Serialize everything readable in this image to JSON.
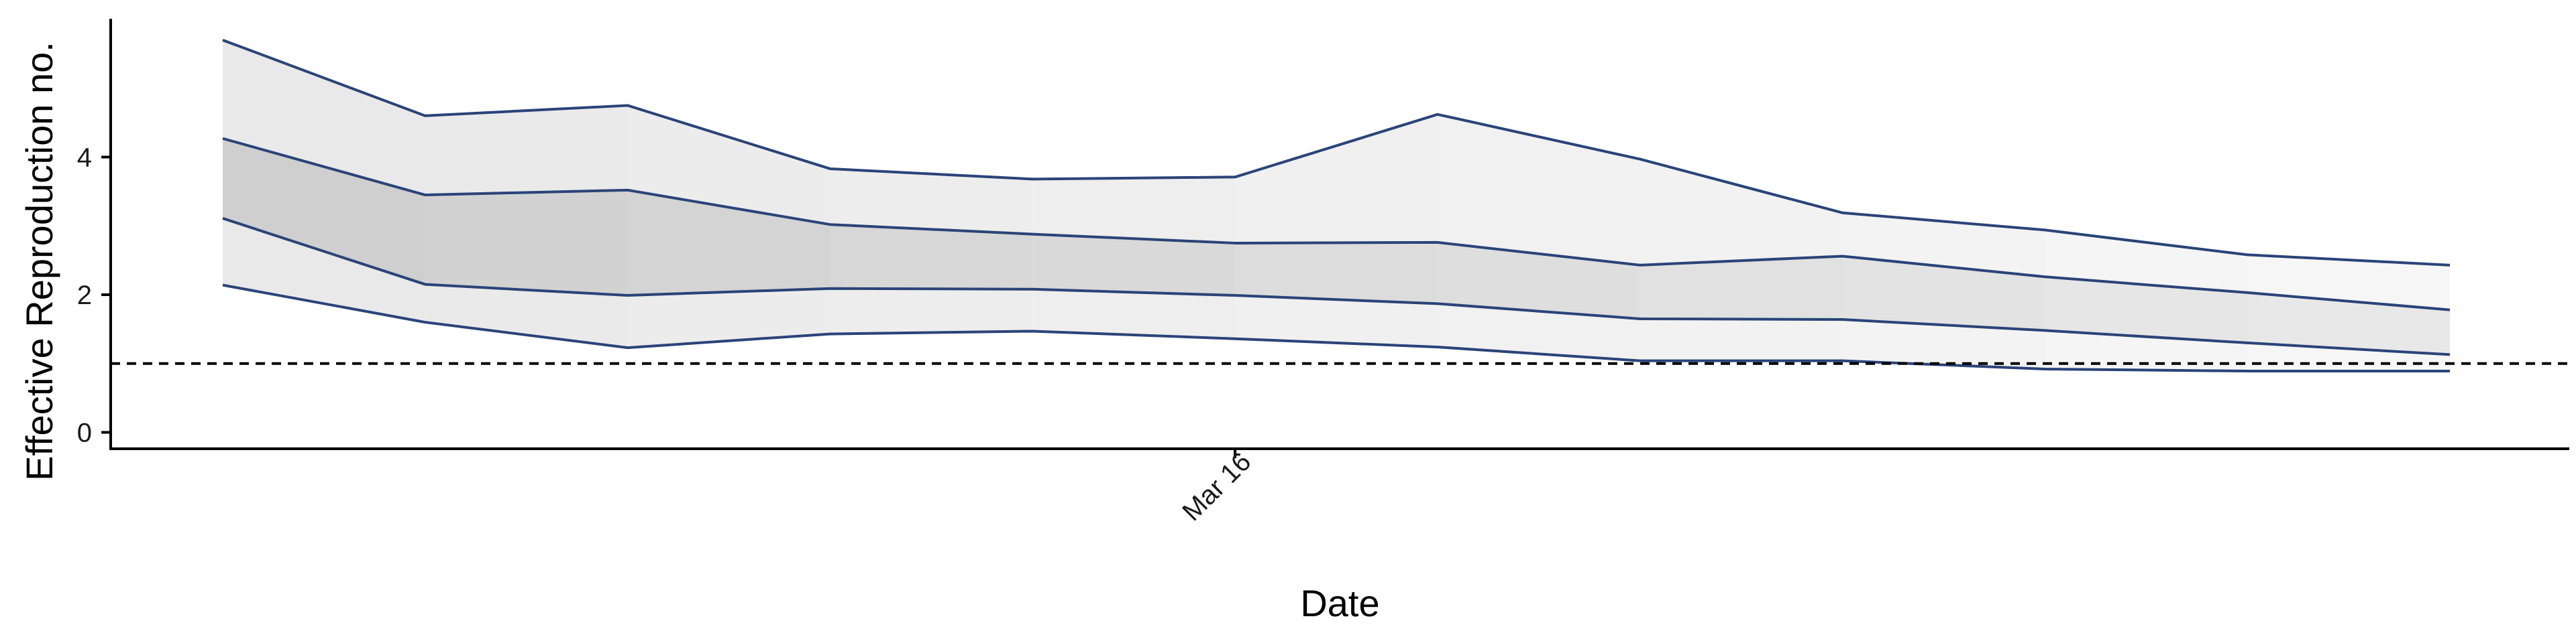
{
  "chart_data": {
    "type": "area",
    "xlabel": "Date",
    "ylabel": "Effective Reproduction no.",
    "x_tick_labels": [
      "Mar 16"
    ],
    "x_tick_index": 5,
    "y_ticks": [
      0,
      2,
      4
    ],
    "ylim": [
      -0.25,
      6.0
    ],
    "reference_line": {
      "y": 1,
      "style": "dashed"
    },
    "grid": false,
    "legend": "none",
    "points": 12,
    "bands": {
      "outer_upper": [
        5.7,
        4.6,
        4.75,
        3.83,
        3.68,
        3.71,
        4.62,
        3.97,
        3.19,
        2.94,
        2.58,
        2.43
      ],
      "inner_upper": [
        4.27,
        3.45,
        3.52,
        3.02,
        2.88,
        2.75,
        2.76,
        2.43,
        2.56,
        2.26,
        2.03,
        1.78
      ],
      "inner_lower": [
        3.11,
        2.15,
        1.99,
        2.09,
        2.08,
        1.99,
        1.87,
        1.65,
        1.64,
        1.48,
        1.3,
        1.13
      ],
      "outer_lower": [
        2.14,
        1.6,
        1.23,
        1.43,
        1.47,
        1.36,
        1.24,
        1.04,
        1.04,
        0.92,
        0.89,
        0.89
      ]
    },
    "colors": {
      "outer_band_start": "#e9e9e9",
      "outer_band_end": "#f6f6f6",
      "inner_band_start": "#cfcfcf",
      "inner_band_end": "#e8e8e8",
      "line": "#2a4478",
      "axis": "#000000"
    }
  }
}
